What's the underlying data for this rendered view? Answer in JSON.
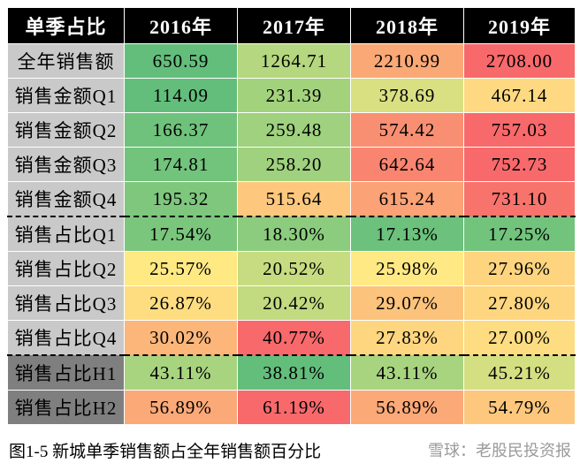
{
  "table": {
    "header": [
      "单季占比",
      "2016年",
      "2017年",
      "2018年",
      "2019年"
    ],
    "rows": [
      [
        "全年销售额",
        "650.59",
        "1264.71",
        "2210.99",
        "2708.00"
      ],
      [
        "销售金额Q1",
        "114.09",
        "231.39",
        "378.69",
        "467.14"
      ],
      [
        "销售金额Q2",
        "166.37",
        "259.48",
        "574.42",
        "757.03"
      ],
      [
        "销售金额Q3",
        "174.81",
        "258.20",
        "642.64",
        "752.73"
      ],
      [
        "销售金额Q4",
        "195.32",
        "515.64",
        "615.24",
        "731.10"
      ],
      [
        "销售占比Q1",
        "17.54%",
        "18.30%",
        "17.13%",
        "17.25%"
      ],
      [
        "销售占比Q2",
        "25.57%",
        "20.52%",
        "25.98%",
        "27.96%"
      ],
      [
        "销售占比Q3",
        "26.87%",
        "20.42%",
        "29.07%",
        "27.80%"
      ],
      [
        "销售占比Q4",
        "30.02%",
        "40.77%",
        "27.83%",
        "27.00%"
      ],
      [
        "销售占比H1",
        "43.11%",
        "38.81%",
        "43.11%",
        "45.21%"
      ],
      [
        "销售占比H2",
        "56.89%",
        "61.19%",
        "56.89%",
        "54.79%"
      ]
    ],
    "colors": [
      [
        "#63be7b",
        "#b5d77f",
        "#fba877",
        "#f8696b"
      ],
      [
        "#63be7b",
        "#a3d27d",
        "#d8e082",
        "#fed981"
      ],
      [
        "#6fc27c",
        "#9fd17e",
        "#f98f72",
        "#f8696b"
      ],
      [
        "#72c37c",
        "#9fd17e",
        "#f98570",
        "#f8696b"
      ],
      [
        "#7ec77d",
        "#fdc87d",
        "#fba276",
        "#f8736c"
      ],
      [
        "#7ac67d",
        "#8ccc7e",
        "#6cc17c",
        "#72c37c"
      ],
      [
        "#fee983",
        "#c7dc80",
        "#ffe984",
        "#fed47f"
      ],
      [
        "#fedd81",
        "#c2da80",
        "#fcc37c",
        "#fed680"
      ],
      [
        "#fcb67a",
        "#f8696b",
        "#fed680",
        "#fedc81"
      ],
      [
        "#a8d47f",
        "#63be7b",
        "#a8d47f",
        "#d4df82"
      ],
      [
        "#fba977",
        "#f8696b",
        "#fba977",
        "#fdc87d"
      ]
    ]
  },
  "caption": "图1-5 新城单季销售额占全年销售额百分比",
  "watermark": "雪球：老股民投资报"
}
